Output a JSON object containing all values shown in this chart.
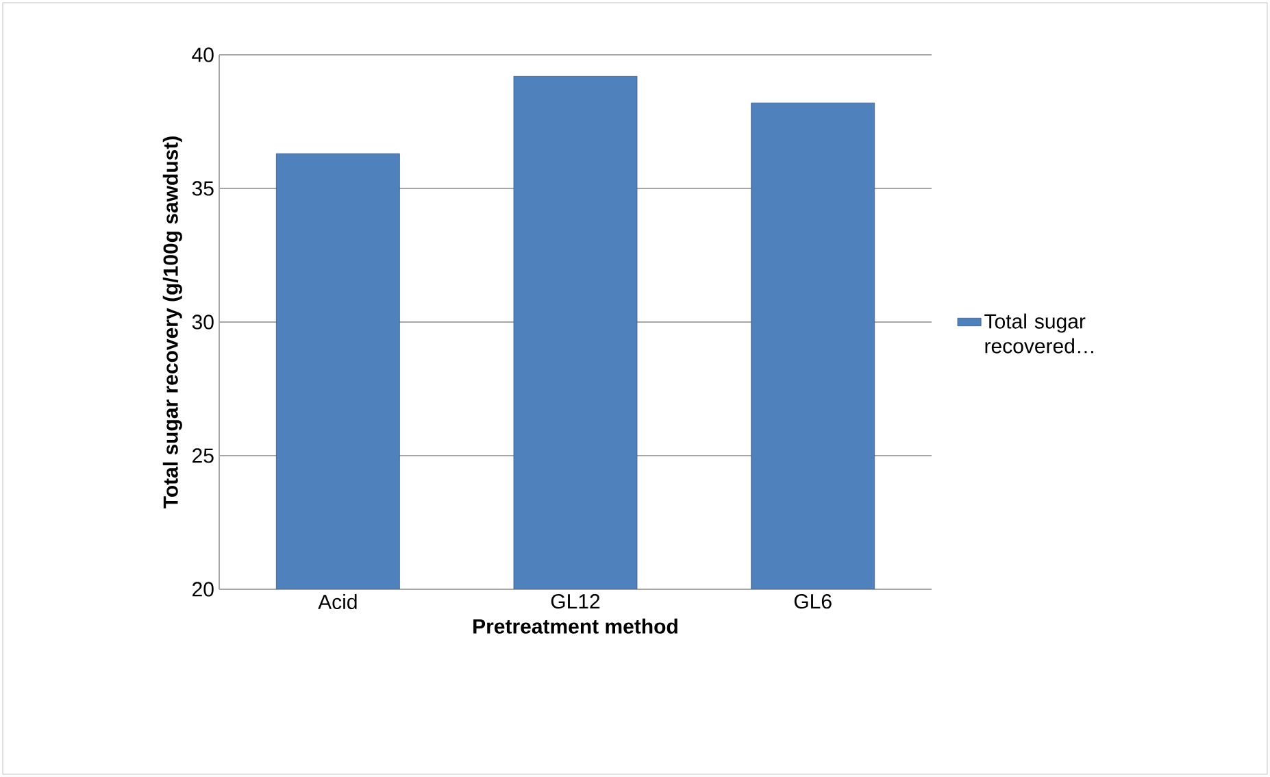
{
  "chart_data": {
    "type": "bar",
    "xlabel": "Pretreatment method",
    "ylabel": "Total sugar recovery (g/100g sawdust)",
    "categories": [
      "Acid",
      "GL12",
      "GL6"
    ],
    "series": [
      {
        "name": "Total sugar recovered…",
        "color": "#4f81bd",
        "values": [
          36.3,
          39.2,
          38.2
        ]
      }
    ],
    "ylim": [
      20,
      40
    ],
    "yticks": [
      20,
      25,
      30,
      35,
      40
    ],
    "grid": "y",
    "legend": "right"
  }
}
